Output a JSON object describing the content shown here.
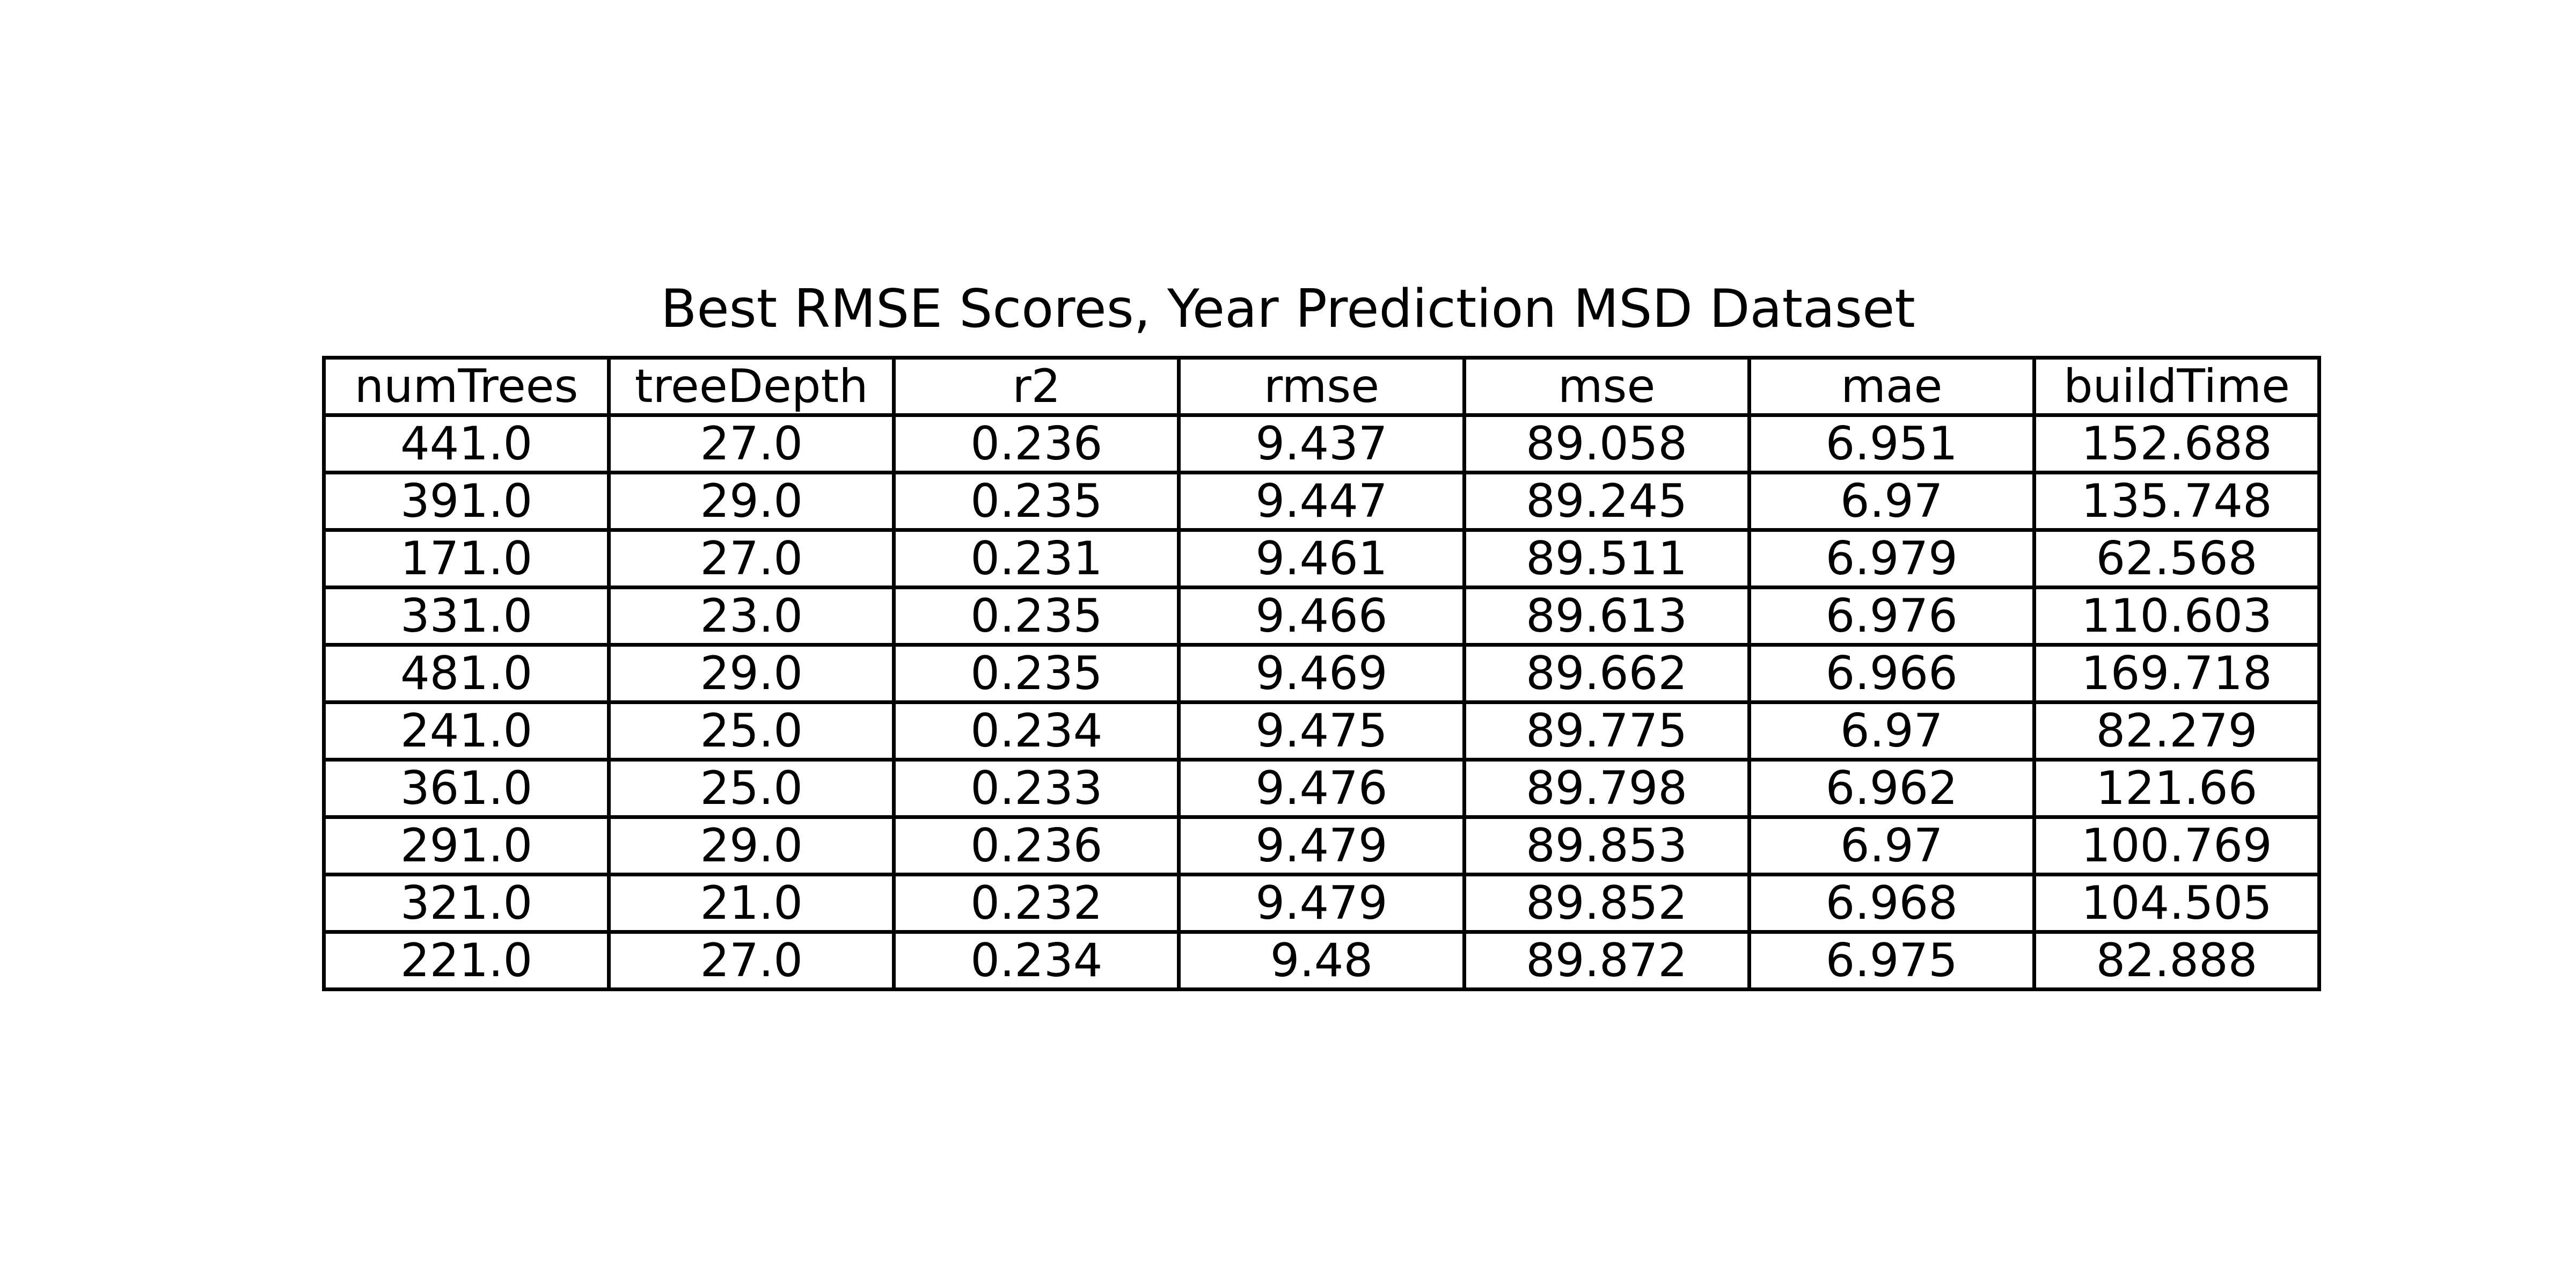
{
  "chart_data": {
    "type": "table",
    "title": "Best RMSE Scores, Year Prediction MSD Dataset",
    "columns": [
      "numTrees",
      "treeDepth",
      "r2",
      "rmse",
      "mse",
      "mae",
      "buildTime"
    ],
    "rows": [
      [
        "441.0",
        "27.0",
        "0.236",
        "9.437",
        "89.058",
        "6.951",
        "152.688"
      ],
      [
        "391.0",
        "29.0",
        "0.235",
        "9.447",
        "89.245",
        "6.97",
        "135.748"
      ],
      [
        "171.0",
        "27.0",
        "0.231",
        "9.461",
        "89.511",
        "6.979",
        "62.568"
      ],
      [
        "331.0",
        "23.0",
        "0.235",
        "9.466",
        "89.613",
        "6.976",
        "110.603"
      ],
      [
        "481.0",
        "29.0",
        "0.235",
        "9.469",
        "89.662",
        "6.966",
        "169.718"
      ],
      [
        "241.0",
        "25.0",
        "0.234",
        "9.475",
        "89.775",
        "6.97",
        "82.279"
      ],
      [
        "361.0",
        "25.0",
        "0.233",
        "9.476",
        "89.798",
        "6.962",
        "121.66"
      ],
      [
        "291.0",
        "29.0",
        "0.236",
        "9.479",
        "89.853",
        "6.97",
        "100.769"
      ],
      [
        "321.0",
        "21.0",
        "0.232",
        "9.479",
        "89.852",
        "6.968",
        "104.505"
      ],
      [
        "221.0",
        "27.0",
        "0.234",
        "9.48",
        "89.872",
        "6.975",
        "82.888"
      ]
    ],
    "colors": {
      "background": "#ffffff",
      "text": "#000000",
      "grid": "#000000"
    }
  }
}
